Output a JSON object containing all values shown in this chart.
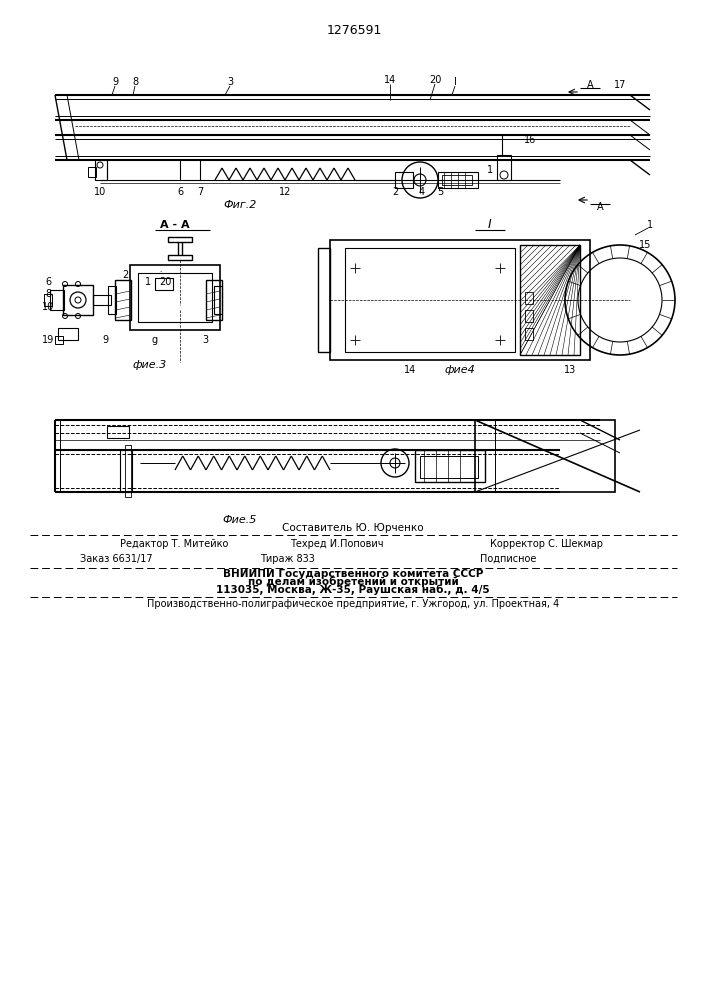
{
  "patent_number": "1276591",
  "background_color": "#ffffff",
  "line_color": "#000000",
  "fig2_caption": "Фиг.2",
  "fig3_caption": "фие.3",
  "fig4_caption": "фие4",
  "fig5_caption": "Фие.5",
  "header_text": "Составитель Ю. Юрченко",
  "row1_left": "Редактор Т. Митейко",
  "row1_mid": "Техред И.Попович",
  "row1_right": "Корректор С. Шекмар",
  "row2_left": "Заказ 6631/17",
  "row2_mid": "Тираж 833",
  "row2_right": "Подписное",
  "row3_text": "ВНИИПИ Государственного комитета СССР",
  "row4_text": "по делам изобретений и открытий",
  "row5_text": "113035, Москва, Ж-35, Раушская наб., д. 4/5",
  "row6_text": "Производственно-полиграфическое предприятие, г. Ужгород, ул. Проектная, 4"
}
